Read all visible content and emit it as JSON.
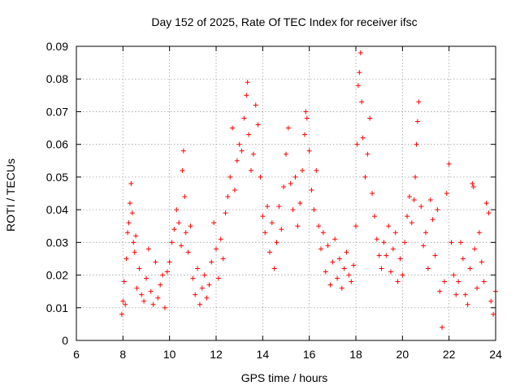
{
  "chart_data": {
    "type": "scatter",
    "title": "Day 152 of 2025, Rate Of TEC Index for receiver ifsc",
    "xlabel": "GPS time / hours",
    "ylabel": "ROTI / TECUs",
    "xlim": [
      6,
      24
    ],
    "ylim": [
      0,
      0.09
    ],
    "xticks": [
      "6",
      "8",
      "10",
      "12",
      "14",
      "16",
      "18",
      "20",
      "22",
      "24"
    ],
    "yticks": [
      "0",
      "0.01",
      "0.02",
      "0.03",
      "0.04",
      "0.05",
      "0.06",
      "0.07",
      "0.08",
      "0.09"
    ],
    "grid": true,
    "marker": "+",
    "marker_color": "#ff0000",
    "series": [
      {
        "name": "ROTI",
        "points": [
          [
            7.95,
            0.008
          ],
          [
            8.0,
            0.012
          ],
          [
            8.05,
            0.018
          ],
          [
            8.1,
            0.011
          ],
          [
            8.15,
            0.025
          ],
          [
            8.2,
            0.033
          ],
          [
            8.25,
            0.036
          ],
          [
            8.3,
            0.042
          ],
          [
            8.35,
            0.048
          ],
          [
            8.4,
            0.039
          ],
          [
            8.45,
            0.03
          ],
          [
            8.5,
            0.027
          ],
          [
            8.55,
            0.032
          ],
          [
            8.6,
            0.016
          ],
          [
            8.7,
            0.022
          ],
          [
            8.8,
            0.014
          ],
          [
            8.9,
            0.012
          ],
          [
            9.0,
            0.019
          ],
          [
            9.1,
            0.028
          ],
          [
            9.2,
            0.015
          ],
          [
            9.3,
            0.011
          ],
          [
            9.4,
            0.024
          ],
          [
            9.5,
            0.013
          ],
          [
            9.6,
            0.017
          ],
          [
            9.7,
            0.02
          ],
          [
            9.8,
            0.01
          ],
          [
            9.9,
            0.021
          ],
          [
            10.0,
            0.024
          ],
          [
            10.1,
            0.03
          ],
          [
            10.2,
            0.034
          ],
          [
            10.3,
            0.04
          ],
          [
            10.4,
            0.036
          ],
          [
            10.5,
            0.029
          ],
          [
            10.55,
            0.052
          ],
          [
            10.6,
            0.058
          ],
          [
            10.65,
            0.044
          ],
          [
            10.7,
            0.033
          ],
          [
            10.8,
            0.027
          ],
          [
            10.9,
            0.035
          ],
          [
            11.0,
            0.019
          ],
          [
            11.1,
            0.014
          ],
          [
            11.2,
            0.022
          ],
          [
            11.3,
            0.011
          ],
          [
            11.4,
            0.016
          ],
          [
            11.5,
            0.02
          ],
          [
            11.6,
            0.013
          ],
          [
            11.7,
            0.017
          ],
          [
            11.8,
            0.024
          ],
          [
            11.9,
            0.036
          ],
          [
            12.0,
            0.028
          ],
          [
            12.1,
            0.019
          ],
          [
            12.2,
            0.031
          ],
          [
            12.3,
            0.025
          ],
          [
            12.4,
            0.039
          ],
          [
            12.5,
            0.044
          ],
          [
            12.6,
            0.05
          ],
          [
            12.7,
            0.065
          ],
          [
            12.8,
            0.046
          ],
          [
            12.9,
            0.055
          ],
          [
            13.0,
            0.06
          ],
          [
            13.1,
            0.058
          ],
          [
            13.2,
            0.068
          ],
          [
            13.3,
            0.075
          ],
          [
            13.35,
            0.079
          ],
          [
            13.4,
            0.063
          ],
          [
            13.5,
            0.052
          ],
          [
            13.6,
            0.057
          ],
          [
            13.7,
            0.072
          ],
          [
            13.8,
            0.066
          ],
          [
            13.9,
            0.05
          ],
          [
            14.0,
            0.038
          ],
          [
            14.1,
            0.033
          ],
          [
            14.2,
            0.041
          ],
          [
            14.3,
            0.027
          ],
          [
            14.4,
            0.036
          ],
          [
            14.5,
            0.022
          ],
          [
            14.6,
            0.03
          ],
          [
            14.7,
            0.041
          ],
          [
            14.8,
            0.034
          ],
          [
            14.9,
            0.047
          ],
          [
            15.0,
            0.057
          ],
          [
            15.1,
            0.065
          ],
          [
            15.2,
            0.048
          ],
          [
            15.3,
            0.04
          ],
          [
            15.4,
            0.05
          ],
          [
            15.5,
            0.035
          ],
          [
            15.6,
            0.042
          ],
          [
            15.7,
            0.052
          ],
          [
            15.8,
            0.063
          ],
          [
            15.85,
            0.07
          ],
          [
            15.9,
            0.068
          ],
          [
            16.0,
            0.058
          ],
          [
            16.1,
            0.046
          ],
          [
            16.2,
            0.04
          ],
          [
            16.3,
            0.052
          ],
          [
            16.4,
            0.035
          ],
          [
            16.5,
            0.028
          ],
          [
            16.6,
            0.033
          ],
          [
            16.7,
            0.021
          ],
          [
            16.8,
            0.029
          ],
          [
            16.9,
            0.017
          ],
          [
            17.0,
            0.024
          ],
          [
            17.1,
            0.031
          ],
          [
            17.2,
            0.019
          ],
          [
            17.3,
            0.025
          ],
          [
            17.4,
            0.016
          ],
          [
            17.5,
            0.022
          ],
          [
            17.6,
            0.027
          ],
          [
            17.7,
            0.02
          ],
          [
            17.8,
            0.018
          ],
          [
            17.9,
            0.023
          ],
          [
            18.0,
            0.035
          ],
          [
            18.05,
            0.06
          ],
          [
            18.1,
            0.078
          ],
          [
            18.15,
            0.082
          ],
          [
            18.2,
            0.088
          ],
          [
            18.25,
            0.073
          ],
          [
            18.3,
            0.062
          ],
          [
            18.4,
            0.05
          ],
          [
            18.5,
            0.057
          ],
          [
            18.6,
            0.068
          ],
          [
            18.7,
            0.045
          ],
          [
            18.8,
            0.038
          ],
          [
            18.9,
            0.031
          ],
          [
            19.0,
            0.026
          ],
          [
            19.1,
            0.022
          ],
          [
            19.2,
            0.03
          ],
          [
            19.3,
            0.026
          ],
          [
            19.4,
            0.035
          ],
          [
            19.5,
            0.021
          ],
          [
            19.6,
            0.028
          ],
          [
            19.7,
            0.033
          ],
          [
            19.8,
            0.018
          ],
          [
            19.9,
            0.025
          ],
          [
            20.0,
            0.02
          ],
          [
            20.1,
            0.03
          ],
          [
            20.2,
            0.038
          ],
          [
            20.3,
            0.044
          ],
          [
            20.4,
            0.036
          ],
          [
            20.5,
            0.043
          ],
          [
            20.55,
            0.05
          ],
          [
            20.6,
            0.06
          ],
          [
            20.65,
            0.067
          ],
          [
            20.7,
            0.073
          ],
          [
            20.8,
            0.041
          ],
          [
            20.9,
            0.029
          ],
          [
            21.0,
            0.033
          ],
          [
            21.1,
            0.022
          ],
          [
            21.2,
            0.043
          ],
          [
            21.3,
            0.037
          ],
          [
            21.4,
            0.026
          ],
          [
            21.5,
            0.04
          ],
          [
            21.6,
            0.015
          ],
          [
            21.7,
            0.004
          ],
          [
            21.8,
            0.018
          ],
          [
            21.9,
            0.045
          ],
          [
            22.0,
            0.054
          ],
          [
            22.1,
            0.03
          ],
          [
            22.2,
            0.02
          ],
          [
            22.3,
            0.014
          ],
          [
            22.4,
            0.018
          ],
          [
            22.5,
            0.03
          ],
          [
            22.6,
            0.025
          ],
          [
            22.7,
            0.014
          ],
          [
            22.8,
            0.011
          ],
          [
            22.9,
            0.022
          ],
          [
            23.0,
            0.048
          ],
          [
            23.05,
            0.047
          ],
          [
            23.1,
            0.028
          ],
          [
            23.2,
            0.016
          ],
          [
            23.3,
            0.033
          ],
          [
            23.4,
            0.024
          ],
          [
            23.5,
            0.018
          ],
          [
            23.6,
            0.042
          ],
          [
            23.7,
            0.039
          ],
          [
            23.8,
            0.012
          ],
          [
            23.9,
            0.008
          ],
          [
            24.0,
            0.015
          ]
        ]
      }
    ]
  }
}
